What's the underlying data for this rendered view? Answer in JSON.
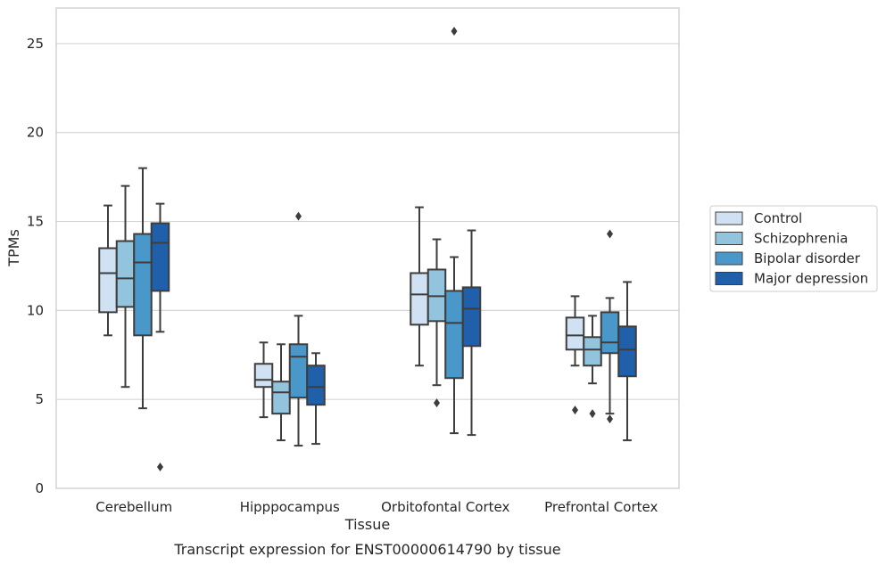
{
  "chart_data": {
    "type": "box",
    "title": "",
    "caption": "Transcript expression for ENST00000614790 by tissue",
    "xlabel": "Tissue",
    "ylabel": "TPMs",
    "ylim": [
      0,
      27
    ],
    "yticks": [
      0,
      5,
      10,
      15,
      20,
      25
    ],
    "grid": "horizontal",
    "legend_position": "right",
    "categories": [
      "Cerebellum",
      "Hipppocampus",
      "Orbitofontal Cortex",
      "Prefrontal Cortex"
    ],
    "series": [
      {
        "name": "Control",
        "color": "#cfe1f2",
        "boxes": [
          {
            "whisker_low": 8.6,
            "q1": 9.9,
            "median": 12.1,
            "q3": 13.5,
            "whisker_high": 15.9,
            "outliers": []
          },
          {
            "whisker_low": 4.0,
            "q1": 5.7,
            "median": 6.1,
            "q3": 7.0,
            "whisker_high": 8.2,
            "outliers": []
          },
          {
            "whisker_low": 6.9,
            "q1": 9.2,
            "median": 10.9,
            "q3": 12.1,
            "whisker_high": 15.8,
            "outliers": []
          },
          {
            "whisker_low": 6.9,
            "q1": 7.8,
            "median": 8.6,
            "q3": 9.6,
            "whisker_high": 10.8,
            "outliers": [
              4.4
            ]
          }
        ]
      },
      {
        "name": "Schizophrenia",
        "color": "#93c4de",
        "boxes": [
          {
            "whisker_low": 5.7,
            "q1": 10.2,
            "median": 11.8,
            "q3": 13.9,
            "whisker_high": 17.0,
            "outliers": []
          },
          {
            "whisker_low": 2.7,
            "q1": 4.2,
            "median": 5.4,
            "q3": 6.0,
            "whisker_high": 8.1,
            "outliers": []
          },
          {
            "whisker_low": 5.8,
            "q1": 9.4,
            "median": 10.8,
            "q3": 12.3,
            "whisker_high": 14.0,
            "outliers": [
              4.8
            ]
          },
          {
            "whisker_low": 5.9,
            "q1": 6.9,
            "median": 7.8,
            "q3": 8.5,
            "whisker_high": 9.7,
            "outliers": [
              4.2
            ]
          }
        ]
      },
      {
        "name": "Bipolar disorder",
        "color": "#4a98c9",
        "boxes": [
          {
            "whisker_low": 4.5,
            "q1": 8.6,
            "median": 12.7,
            "q3": 14.3,
            "whisker_high": 18.0,
            "outliers": []
          },
          {
            "whisker_low": 2.4,
            "q1": 5.1,
            "median": 7.4,
            "q3": 8.1,
            "whisker_high": 9.7,
            "outliers": [
              15.3
            ]
          },
          {
            "whisker_low": 3.1,
            "q1": 6.2,
            "median": 9.3,
            "q3": 11.1,
            "whisker_high": 13.0,
            "outliers": [
              25.7
            ]
          },
          {
            "whisker_low": 4.2,
            "q1": 7.6,
            "median": 8.2,
            "q3": 9.9,
            "whisker_high": 10.7,
            "outliers": [
              14.3,
              3.9
            ]
          }
        ]
      },
      {
        "name": "Major depression",
        "color": "#2060aa",
        "boxes": [
          {
            "whisker_low": 8.8,
            "q1": 11.1,
            "median": 13.8,
            "q3": 14.9,
            "whisker_high": 16.0,
            "outliers": [
              1.2
            ]
          },
          {
            "whisker_low": 2.5,
            "q1": 4.7,
            "median": 5.7,
            "q3": 6.9,
            "whisker_high": 7.6,
            "outliers": []
          },
          {
            "whisker_low": 3.0,
            "q1": 8.0,
            "median": 10.1,
            "q3": 11.3,
            "whisker_high": 14.5,
            "outliers": []
          },
          {
            "whisker_low": 2.7,
            "q1": 6.3,
            "median": 7.8,
            "q3": 9.1,
            "whisker_high": 11.6,
            "outliers": []
          }
        ]
      }
    ]
  }
}
